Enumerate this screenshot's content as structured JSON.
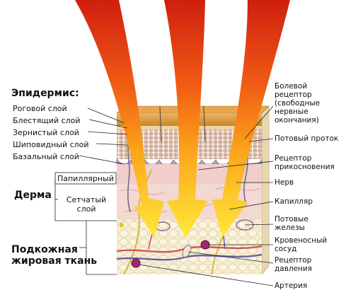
{
  "sections": {
    "epidermis": "Эпидермис:",
    "dermis": "Дерма",
    "subcutaneous": "Подкожная\nжировая ткань"
  },
  "left_labels": {
    "stratum_corneum": "Роговой слой",
    "stratum_lucidum": "Блестящий слой",
    "stratum_granulosum": "Зернистый слой",
    "stratum_spinosum": "Шиповидный слой",
    "stratum_basale": "Базальный слой",
    "papillary": "Папиллярный",
    "reticular": "Сетчатый слой"
  },
  "right_labels": {
    "pain_receptor": "Болевой\nрецептор\n(свободные\nнервные\nокончания)",
    "sweat_duct": "Потовый проток",
    "touch_receptor": "Рецептор\nприкосновения",
    "nerve": "Нерв",
    "capillary": "Капилляр",
    "sweat_glands": "Потовые\nжелезы",
    "blood_vessel": "Кровеносный\nсосуд",
    "pressure_receptor": "Рецептор\nдавления",
    "artery": "Артерия"
  },
  "colors": {
    "corneum": "#d89a38",
    "epidermis_dots": "#c79a7a",
    "dermis": "#f3d3cf",
    "fat": "#f6eccd",
    "arrow_top": "#e02a12",
    "arrow_bottom": "#ffe03a"
  }
}
